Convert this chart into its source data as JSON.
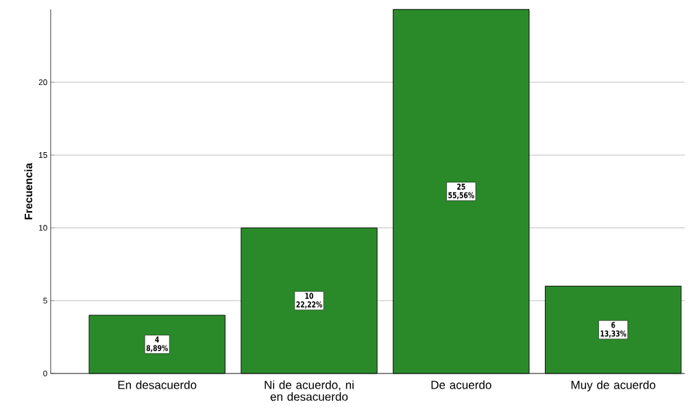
{
  "chart_data": {
    "type": "bar",
    "ylabel": "Frecuencia",
    "categories": [
      "En desacuerdo",
      "Ni de acuerdo, ni en desacuerdo",
      "De acuerdo",
      "Muy de acuerdo"
    ],
    "values": [
      4,
      10,
      25,
      6
    ],
    "color": "#2a8a2a",
    "ylim": [
      0,
      25
    ],
    "yticks": [
      0,
      5,
      10,
      15,
      20
    ],
    "grid": "y",
    "data_labels": true,
    "annotations": [
      {
        "text": "8,89%",
        "x": "En desacuerdo",
        "y": 2
      },
      {
        "text": "22,22%",
        "x": "Ni de acuerdo, ni en desacuerdo",
        "y": 5
      },
      {
        "text": "55,56%",
        "x": "De acuerdo",
        "y": 12.5
      },
      {
        "text": "13,33%",
        "x": "Muy de acuerdo",
        "y": 3
      }
    ]
  }
}
